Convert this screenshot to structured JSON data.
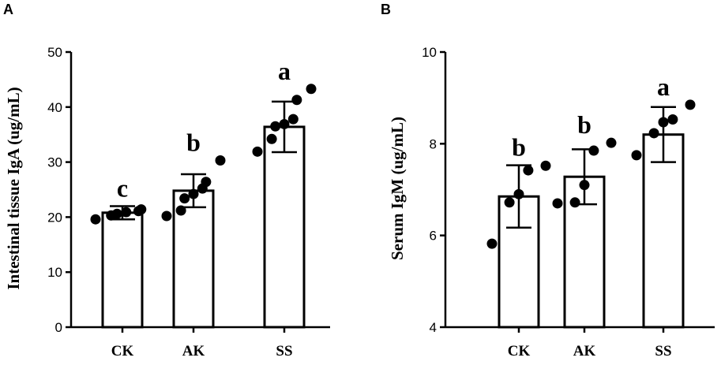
{
  "panels": [
    {
      "letter": "A",
      "chart_data": {
        "type": "bar",
        "categories": [
          "CK",
          "AK",
          "SS"
        ],
        "values": [
          20.8,
          24.8,
          36.4
        ],
        "errors": [
          1.2,
          3.0,
          4.6
        ],
        "points": [
          [
            19.6,
            20.3,
            20.6,
            20.9,
            21.1,
            21.4
          ],
          [
            20.2,
            21.2,
            23.4,
            24.2,
            25.2,
            26.4,
            30.3
          ],
          [
            31.9,
            34.2,
            36.5,
            36.9,
            37.8,
            41.3,
            43.3
          ]
        ],
        "significance": [
          "c",
          "b",
          "a"
        ],
        "ylabel": "Intestinal tissue IgA (ug/mL)",
        "ylim": [
          0,
          50
        ],
        "yticks": [
          "0",
          "10",
          "20",
          "30",
          "40",
          "50"
        ],
        "grid": false
      }
    },
    {
      "letter": "B",
      "chart_data": {
        "type": "bar",
        "categories": [
          "CK",
          "AK",
          "SS"
        ],
        "values": [
          6.85,
          7.28,
          8.2
        ],
        "errors": [
          0.68,
          0.6,
          0.6
        ],
        "points": [
          [
            5.82,
            6.72,
            6.9,
            7.42,
            7.52
          ],
          [
            6.7,
            6.72,
            7.1,
            7.85,
            8.02
          ],
          [
            7.75,
            8.23,
            8.47,
            8.53,
            8.85
          ]
        ],
        "significance": [
          "b",
          "b",
          "a"
        ],
        "ylabel": "Serum IgM (ug/mL)",
        "ylim": [
          4,
          10
        ],
        "yticks": [
          "4",
          "6",
          "8",
          "10"
        ],
        "grid": false
      }
    }
  ]
}
